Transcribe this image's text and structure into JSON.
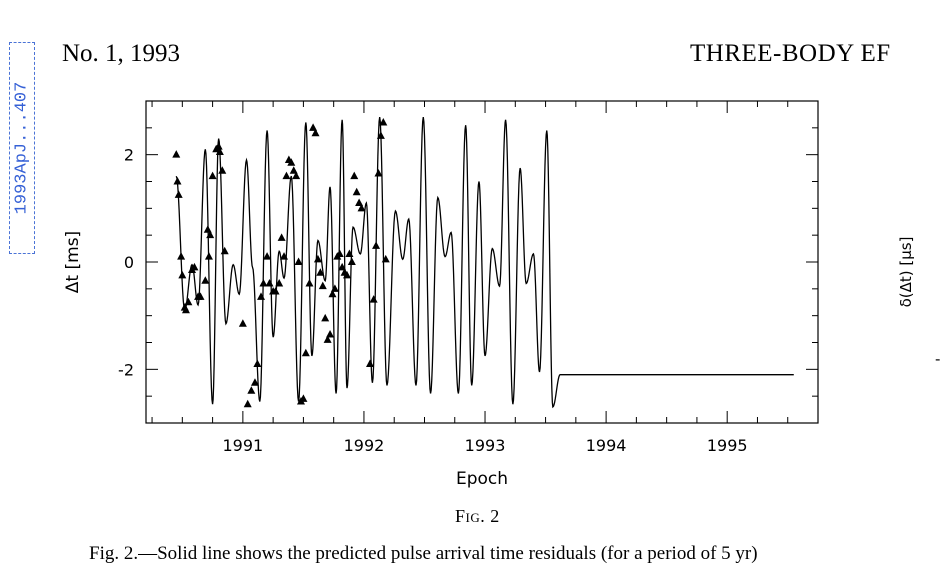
{
  "stamp": "1993ApJ...407",
  "header": {
    "journal": "No. 1, 1993",
    "running_title": "THREE-BODY EF"
  },
  "figure": {
    "label": "Fig. 2",
    "caption": "Fig. 2.—Solid line shows the predicted pulse arrival time residuals (for a period of 5 yr)",
    "right_panel_ylabel": "δ(Δt) [μs]",
    "right_panel_tick_fragment": "-"
  },
  "chart_data": {
    "type": "line",
    "xlabel": "Epoch",
    "ylabel": "Δt [ms]",
    "xlim": [
      1990.2,
      1995.75
    ],
    "ylim": [
      -3.0,
      3.0
    ],
    "x_ticks": [
      1991,
      1992,
      1993,
      1994,
      1995
    ],
    "y_ticks": [
      -2,
      0,
      2
    ],
    "grid": false,
    "series": [
      {
        "role": "model curve (solid line)",
        "x": [
          1990.45,
          1990.52,
          1990.58,
          1990.63,
          1990.69,
          1990.75,
          1990.8,
          1990.86,
          1990.92,
          1990.97,
          1991.03,
          1991.08,
          1991.14,
          1991.2,
          1991.25,
          1991.3,
          1991.34,
          1991.4,
          1991.46,
          1991.52,
          1991.57,
          1991.62,
          1991.68,
          1991.72,
          1991.77,
          1991.82,
          1991.86,
          1991.91,
          1991.97,
          1992.02,
          1992.07,
          1992.13,
          1992.19,
          1992.26,
          1992.32,
          1992.37,
          1992.43,
          1992.49,
          1992.55,
          1992.61,
          1992.67,
          1992.72,
          1992.78,
          1992.84,
          1992.89,
          1992.95,
          1993.0,
          1993.06,
          1993.12,
          1993.17,
          1993.23,
          1993.29,
          1993.34,
          1993.4,
          1993.45,
          1993.51,
          1993.56,
          1993.62,
          1993.67,
          1993.73,
          1993.78,
          1993.84,
          1993.9,
          1993.95,
          1994.01,
          1994.06,
          1994.12,
          1994.17,
          1994.23,
          1994.28,
          1994.34,
          1994.4,
          1994.45,
          1994.51,
          1994.57,
          1994.62,
          1994.68,
          1994.73,
          1994.79,
          1994.84,
          1994.9,
          1994.95,
          1995.01,
          1995.06,
          1995.12,
          1995.17,
          1995.23,
          1995.28,
          1995.34,
          1995.4,
          1995.45,
          1995.51,
          1995.55
        ],
        "y": [
          1.6,
          -0.9,
          -0.05,
          -0.8,
          2.1,
          -2.65,
          2.3,
          -1.15,
          -0.05,
          -0.6,
          1.9,
          -0.1,
          -2.6,
          2.45,
          -1.4,
          0.2,
          -0.3,
          1.6,
          -2.6,
          2.6,
          -1.75,
          0.4,
          -0.35,
          1.4,
          -2.45,
          2.65,
          -2.35,
          0.65,
          0.15,
          1.1,
          -2.25,
          2.7,
          -2.3,
          0.95,
          0.05,
          0.8,
          -2.3,
          2.7,
          -2.45,
          1.2,
          0.1,
          0.55,
          -2.45,
          2.55,
          -2.3,
          1.5,
          -1.75,
          0.25,
          -0.45,
          2.65,
          -2.65,
          1.75,
          -0.4,
          0.15,
          -2.05,
          2.45,
          -2.7,
          -2.1,
          -2.1,
          -2.1,
          -2.1,
          -2.1,
          -2.1,
          -2.1,
          -2.1,
          -2.1,
          -2.1,
          -2.1,
          -2.1,
          -2.1,
          -2.1,
          -2.1,
          -2.1,
          -2.1,
          -2.1,
          -2.1,
          -2.1,
          -2.1,
          -2.1,
          -2.1,
          -2.1,
          -2.1,
          -2.1,
          -2.1,
          -2.1,
          -2.1,
          -2.1,
          -2.1,
          -2.1,
          -2.1,
          -2.1,
          -2.1,
          -2.1
        ]
      },
      {
        "role": "observed residuals (triangles)",
        "x": [
          1990.45,
          1990.46,
          1990.47,
          1990.49,
          1990.5,
          1990.52,
          1990.53,
          1990.55,
          1990.58,
          1990.6,
          1990.63,
          1990.65,
          1990.69,
          1990.71,
          1990.72,
          1990.73,
          1990.75,
          1990.78,
          1990.8,
          1990.81,
          1990.83,
          1990.85,
          1991.0,
          1991.04,
          1991.07,
          1991.1,
          1991.12,
          1991.15,
          1991.17,
          1991.2,
          1991.22,
          1991.25,
          1991.27,
          1991.3,
          1991.32,
          1991.34,
          1991.36,
          1991.38,
          1991.4,
          1991.42,
          1991.44,
          1991.46,
          1991.48,
          1991.5,
          1991.52,
          1991.55,
          1991.58,
          1991.6,
          1991.62,
          1991.64,
          1991.66,
          1991.68,
          1991.7,
          1991.72,
          1991.74,
          1991.76,
          1991.78,
          1991.8,
          1991.82,
          1991.84,
          1991.86,
          1991.88,
          1991.9,
          1991.92,
          1991.94,
          1991.96,
          1991.98,
          1992.05,
          1992.08,
          1992.1,
          1992.12,
          1992.14,
          1992.16,
          1992.18
        ],
        "y": [
          2.0,
          1.5,
          1.25,
          0.1,
          -0.25,
          -0.85,
          -0.9,
          -0.75,
          -0.15,
          -0.1,
          -0.65,
          -0.65,
          -0.35,
          0.6,
          0.1,
          0.5,
          1.6,
          2.1,
          2.15,
          2.05,
          1.7,
          0.2,
          -1.15,
          -2.65,
          -2.4,
          -2.25,
          -1.9,
          -0.65,
          -0.4,
          0.1,
          -0.4,
          -0.55,
          -0.55,
          -0.4,
          0.45,
          0.1,
          1.6,
          1.9,
          1.85,
          1.7,
          1.6,
          0.0,
          -2.6,
          -2.55,
          -1.7,
          -0.4,
          2.5,
          2.4,
          0.05,
          -0.2,
          -0.45,
          -1.05,
          -1.45,
          -1.35,
          -0.6,
          -0.5,
          0.1,
          0.15,
          -0.1,
          -0.2,
          -0.25,
          0.15,
          0.0,
          1.6,
          1.3,
          1.1,
          1.0,
          -1.9,
          -0.7,
          0.3,
          1.65,
          2.35,
          2.6,
          0.05
        ]
      }
    ]
  }
}
